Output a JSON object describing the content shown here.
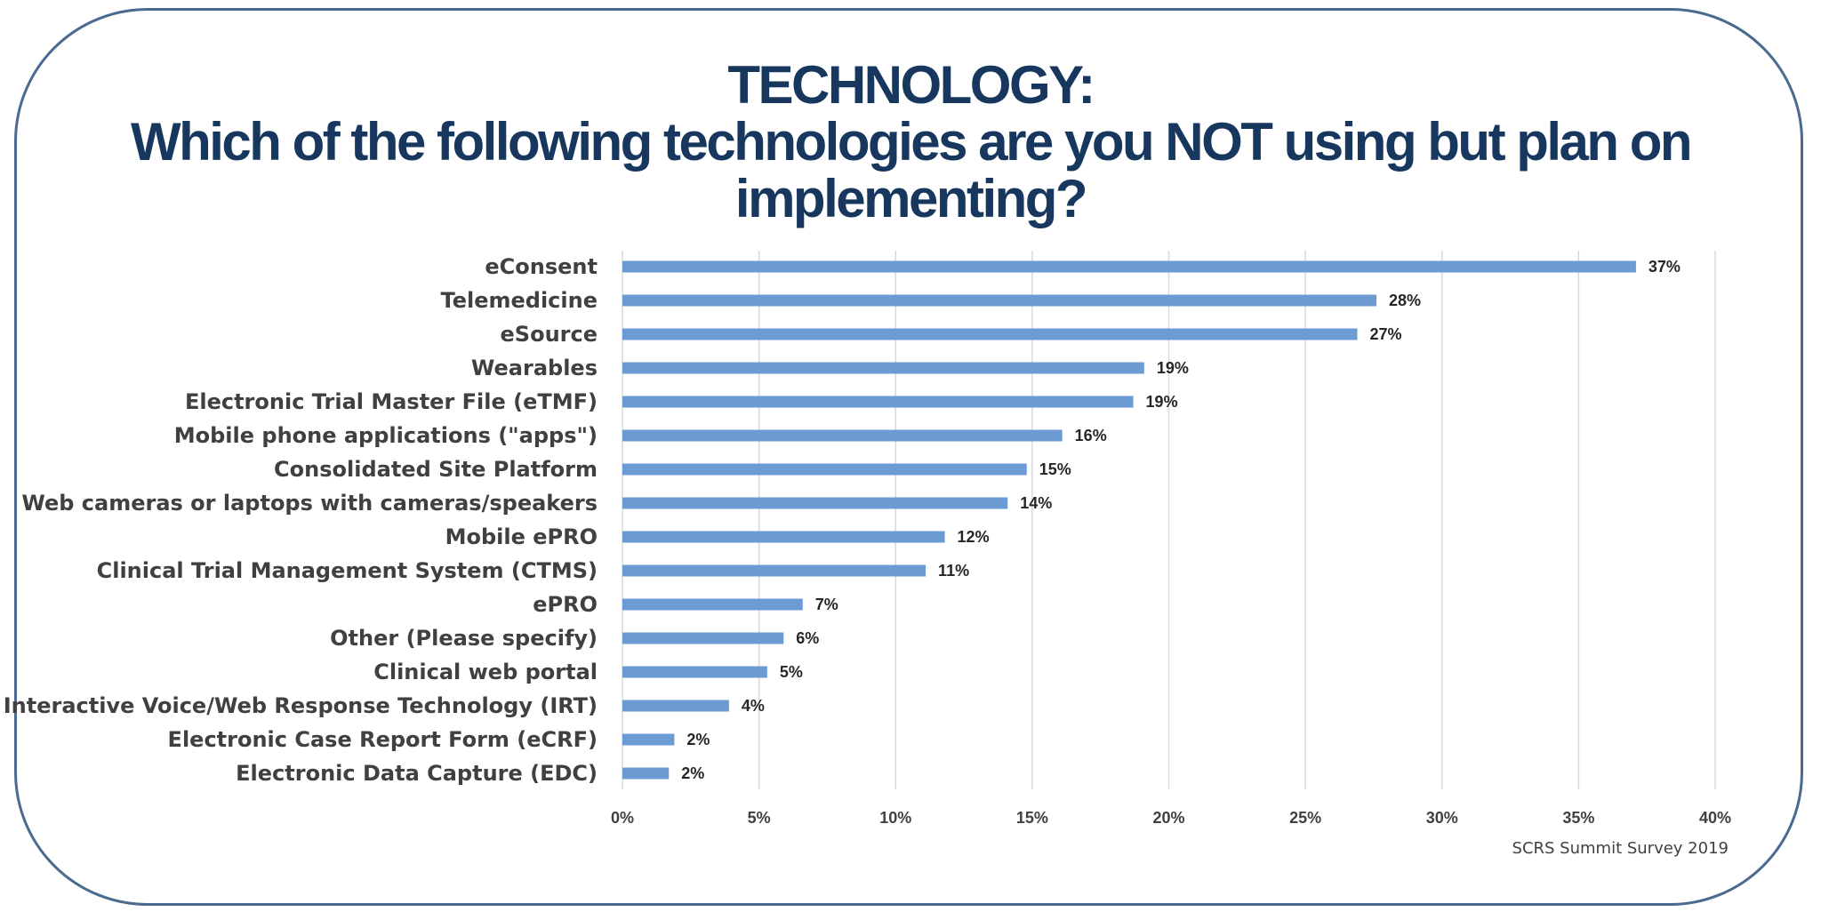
{
  "title": {
    "line1": "TECHNOLOGY:",
    "line2": "Which of the following technologies are you NOT using but plan on",
    "line3": "implementing?"
  },
  "source": "SCRS Summit Survey 2019",
  "colors": {
    "bar": "#6b9bd2",
    "title": "#17375e",
    "frame": "#4a6a8f",
    "grid": "#d9d9d9"
  },
  "chart_data": {
    "type": "bar",
    "orientation": "horizontal",
    "categories": [
      "eConsent",
      "Telemedicine",
      "eSource",
      "Wearables",
      "Electronic Trial Master File (eTMF)",
      "Mobile phone applications (\"apps\")",
      "Consolidated Site Platform",
      "Web cameras or laptops with cameras/speakers",
      "Mobile ePRO",
      "Clinical Trial Management System (CTMS)",
      "ePRO",
      "Other (Please specify)",
      "Clinical web portal",
      "Interactive Voice/Web Response Technology (IRT)",
      "Electronic Case Report Form (eCRF)",
      "Electronic Data Capture (EDC)"
    ],
    "values": [
      37.1,
      27.6,
      26.9,
      19.1,
      18.7,
      16.1,
      14.8,
      14.1,
      11.8,
      11.1,
      6.6,
      5.9,
      5.3,
      3.9,
      1.9,
      1.7
    ],
    "data_labels": [
      "37%",
      "28%",
      "27%",
      "19%",
      "19%",
      "16%",
      "15%",
      "14%",
      "12%",
      "11%",
      "7%",
      "6%",
      "5%",
      "4%",
      "2%",
      "2%"
    ],
    "xlim": [
      0,
      40
    ],
    "xticks": [
      0,
      5,
      10,
      15,
      20,
      25,
      30,
      35,
      40
    ],
    "xtick_labels": [
      "0%",
      "5%",
      "10%",
      "15%",
      "20%",
      "25%",
      "30%",
      "35%",
      "40%"
    ],
    "grid": true,
    "legend": "none"
  }
}
